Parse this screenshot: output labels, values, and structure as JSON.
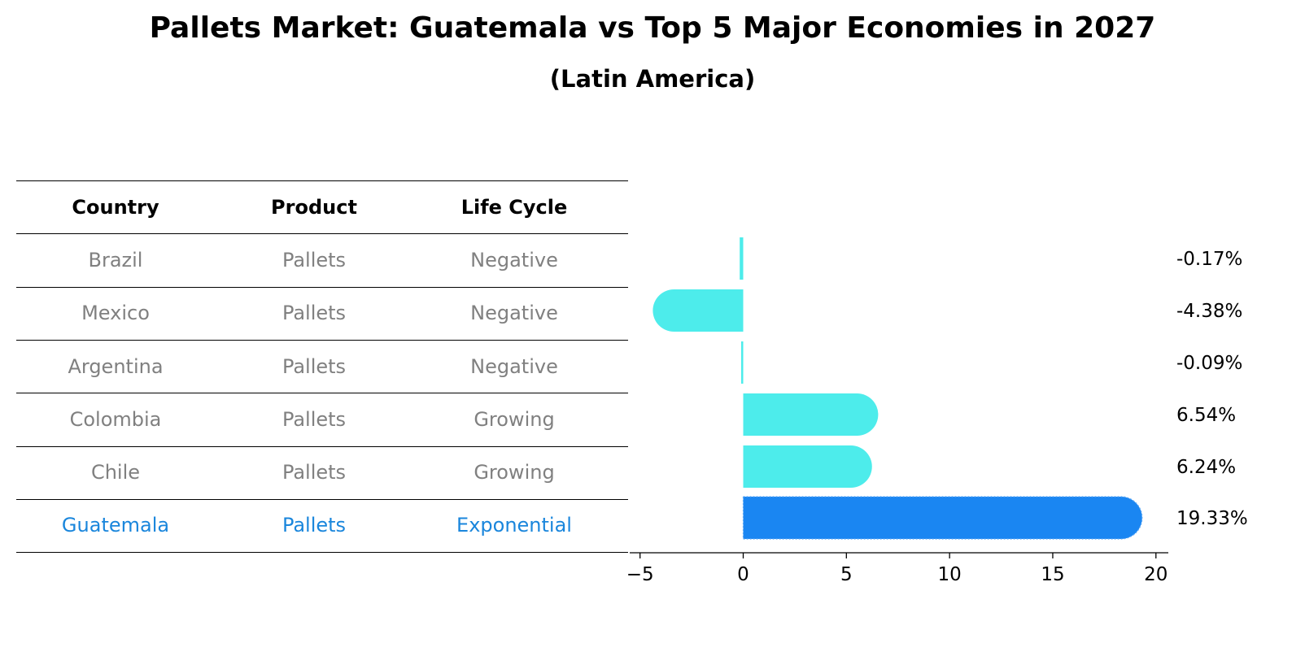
{
  "title": "Pallets Market: Guatemala vs Top 5 Major Economies in 2027",
  "subtitle": "(Latin America)",
  "table": {
    "headers": [
      "Country",
      "Product",
      "Life Cycle"
    ],
    "rows": [
      [
        "Brazil",
        "Pallets",
        "Negative"
      ],
      [
        "Mexico",
        "Pallets",
        "Negative"
      ],
      [
        "Argentina",
        "Pallets",
        "Negative"
      ],
      [
        "Colombia",
        "Pallets",
        "Growing"
      ],
      [
        "Chile",
        "Pallets",
        "Growing"
      ],
      [
        "Guatemala",
        "Pallets",
        "Exponential"
      ]
    ],
    "highlight_row": 5
  },
  "colors": {
    "bar": "#4deceb",
    "highlight_bar": "#1a86f2",
    "muted_text": "#808080",
    "highlight_text": "#1a86dc"
  },
  "chart_data": {
    "type": "bar",
    "orientation": "horizontal",
    "categories": [
      "Brazil",
      "Mexico",
      "Argentina",
      "Colombia",
      "Chile",
      "Guatemala"
    ],
    "values": [
      -0.17,
      -4.38,
      -0.09,
      6.54,
      6.24,
      19.33
    ],
    "value_labels": [
      "-0.17%",
      "-4.38%",
      "-0.09%",
      "6.54%",
      "6.24%",
      "19.33%"
    ],
    "highlight_index": 5,
    "xlim": [
      -5.5,
      20.6
    ],
    "xticks": [
      -5,
      0,
      5,
      10,
      15,
      20
    ],
    "xtick_labels": [
      "−5",
      "0",
      "5",
      "10",
      "15",
      "20"
    ],
    "grid": false
  }
}
